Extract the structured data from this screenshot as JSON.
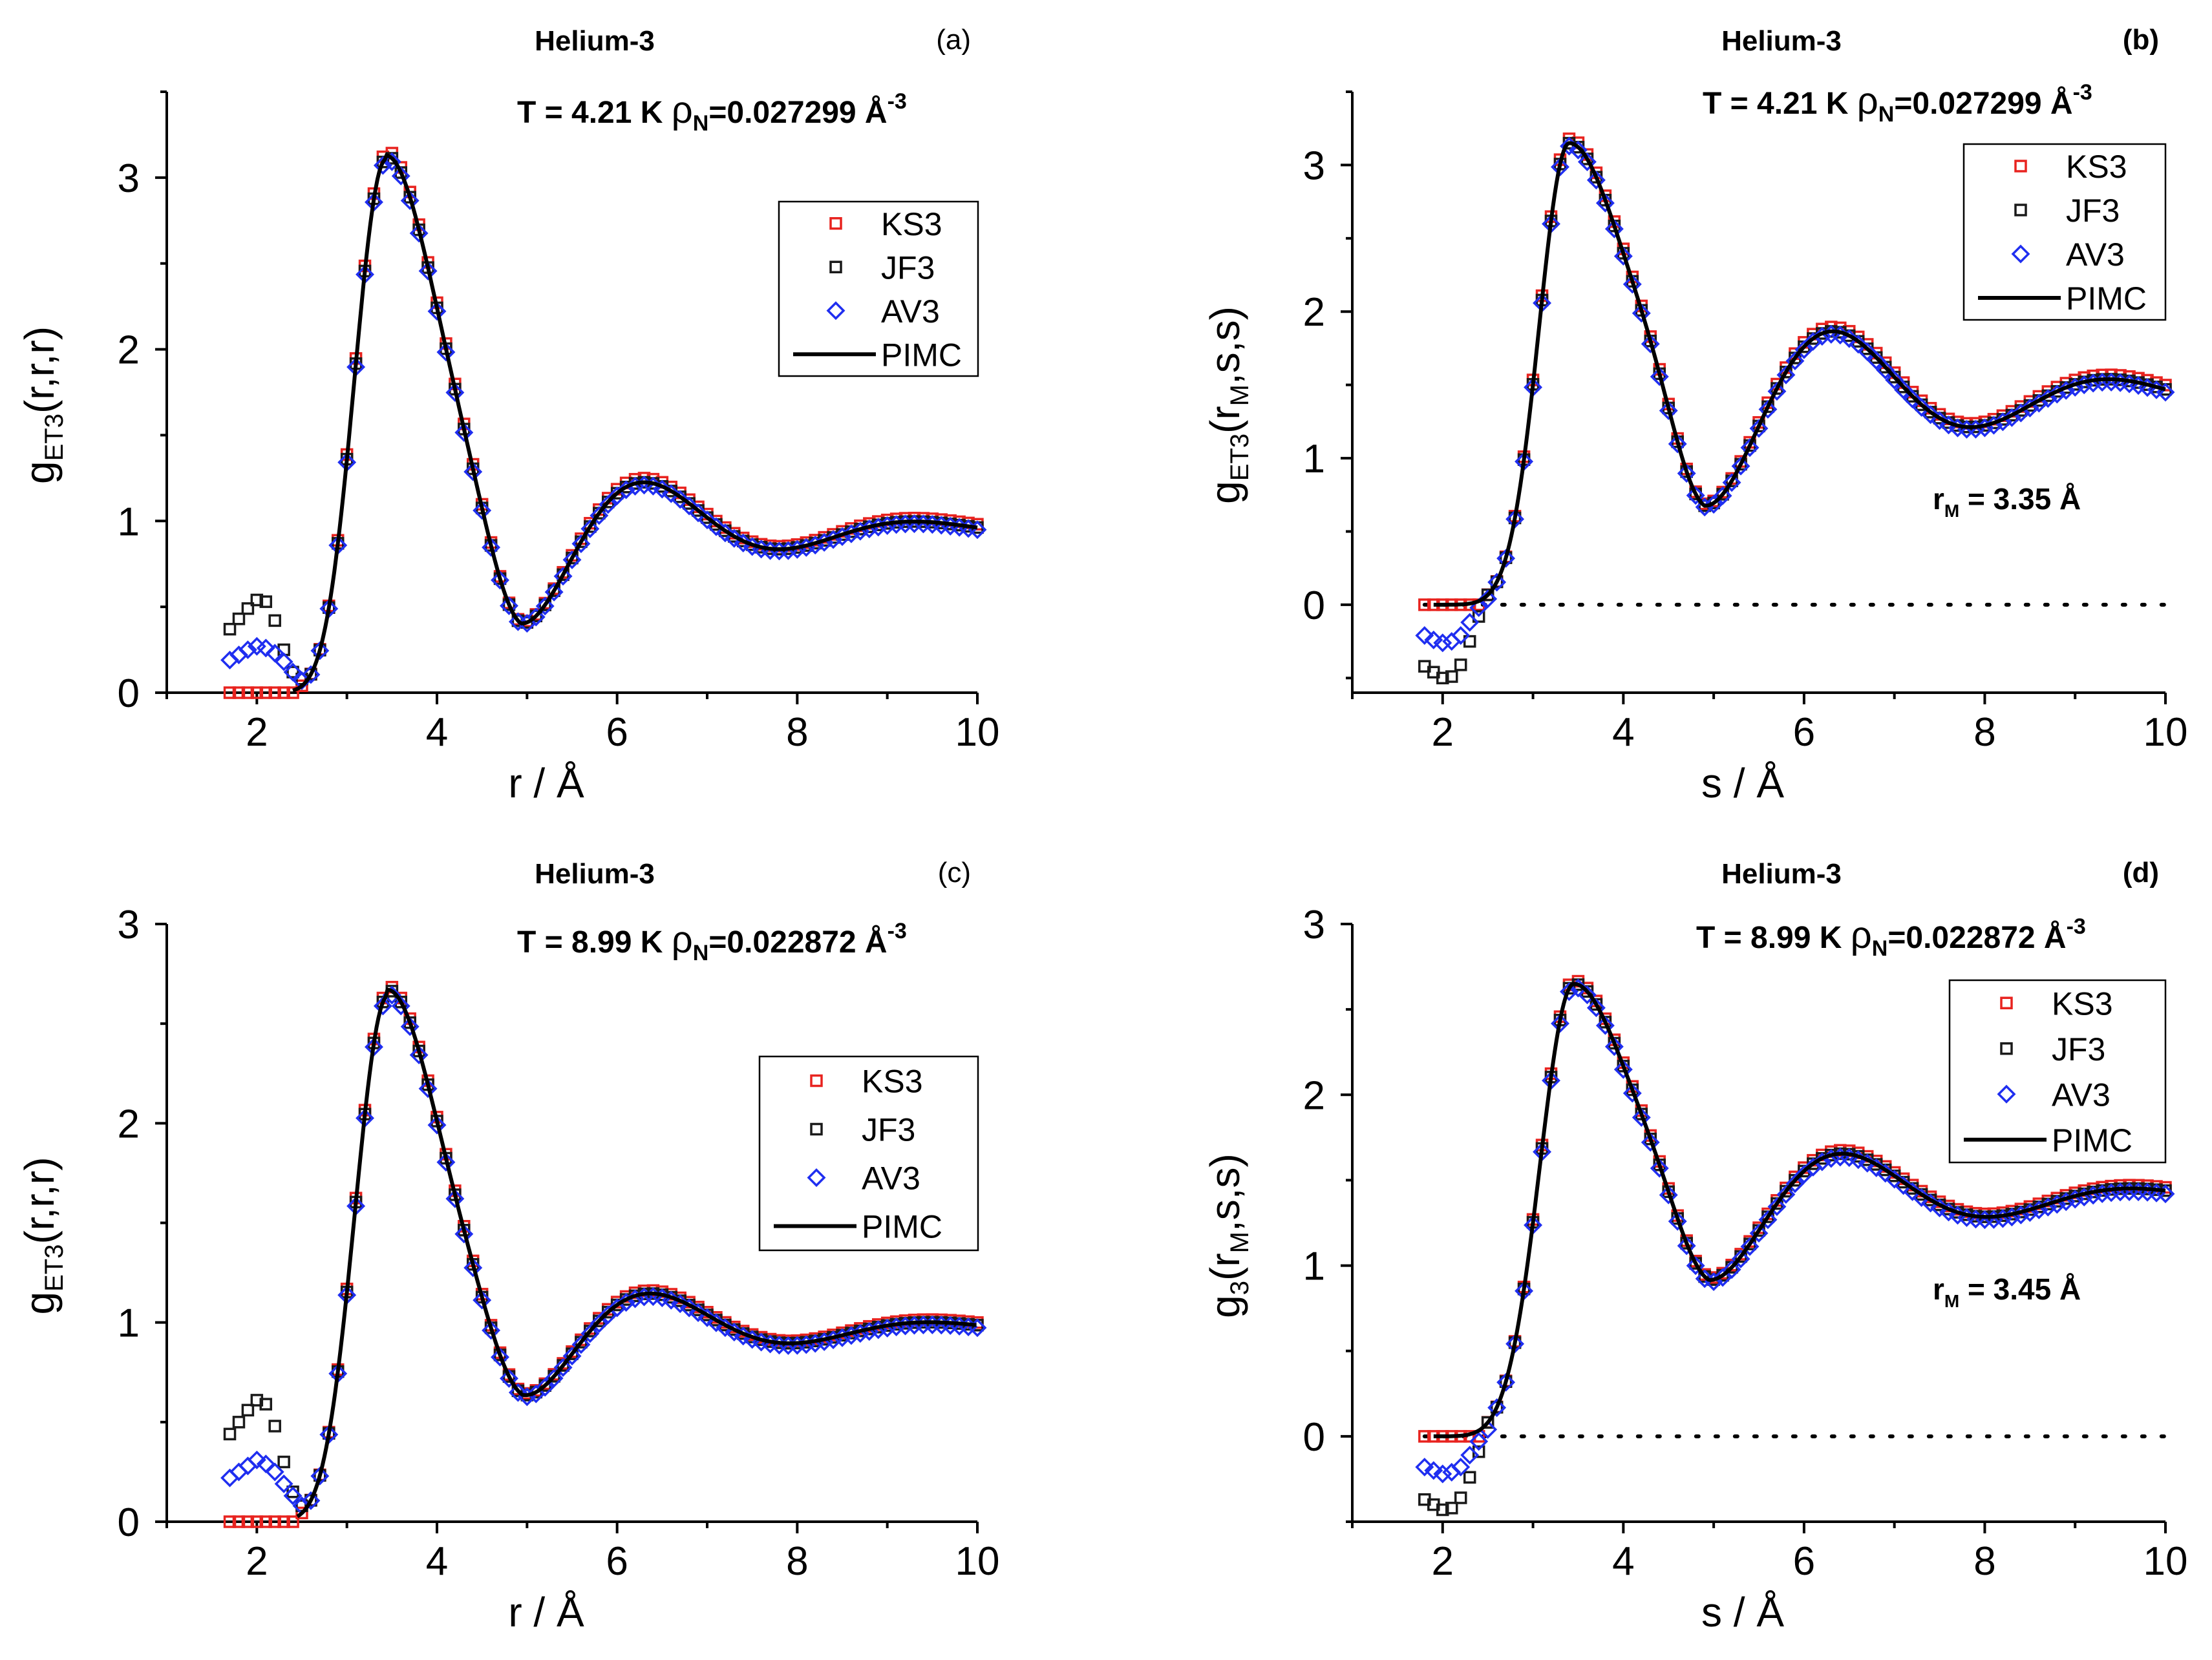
{
  "figure": {
    "panels": [
      {
        "title": "Helium-3",
        "label": "(a)",
        "condition_T": "T = 4.21 K",
        "condition_rho_prefix": "ρ",
        "condition_rho_sub": "N",
        "condition_rho_value": "=0.027299 Å",
        "condition_rho_exp": "-3",
        "ylabel_main": "g",
        "ylabel_sub": "ET3",
        "ylabel_rest": "(r,r,r)",
        "xlabel": "r / Å",
        "rm_label": "",
        "legend": [
          "KS3",
          "JF3",
          "AV3",
          "PIMC"
        ]
      },
      {
        "title": "Helium-3",
        "label": "(b)",
        "condition_T": "T = 4.21 K",
        "condition_rho_prefix": "ρ",
        "condition_rho_sub": "N",
        "condition_rho_value": "=0.027299 Å",
        "condition_rho_exp": "-3",
        "ylabel_main": "g",
        "ylabel_sub": "ET3",
        "ylabel_mid": "(r",
        "ylabel_sub2": "M",
        "ylabel_rest": ",s,s)",
        "xlabel": "s / Å",
        "rm_label": "r",
        "rm_sub": "M",
        "rm_value": " = 3.35 Å",
        "legend": [
          "KS3",
          "JF3",
          "AV3",
          "PIMC"
        ]
      },
      {
        "title": "Helium-3",
        "label": "(c)",
        "condition_T": "T = 8.99 K",
        "condition_rho_prefix": "ρ",
        "condition_rho_sub": "N",
        "condition_rho_value": "=0.022872 Å",
        "condition_rho_exp": "-3",
        "ylabel_main": "g",
        "ylabel_sub": "ET3",
        "ylabel_rest": "(r,r,r)",
        "xlabel": "r / Å",
        "rm_label": "",
        "legend": [
          "KS3",
          "JF3",
          "AV3",
          "PIMC"
        ]
      },
      {
        "title": "Helium-3",
        "label": "(d)",
        "condition_T": "T = 8.99 K",
        "condition_rho_prefix": "ρ",
        "condition_rho_sub": "N",
        "condition_rho_value": "=0.022872 Å",
        "condition_rho_exp": "-3",
        "ylabel_main": "g",
        "ylabel_sub": "3",
        "ylabel_mid": "(r",
        "ylabel_sub2": "M",
        "ylabel_rest": ",s,s)",
        "xlabel": "s / Å",
        "rm_label": "r",
        "rm_sub": "M",
        "rm_value": " = 3.45 Å",
        "legend": [
          "KS3",
          "JF3",
          "AV3",
          "PIMC"
        ]
      }
    ]
  },
  "colors": {
    "KS3": "#e8231f",
    "JF3": "#1a1a1a",
    "AV3": "#1f2ef0",
    "PIMC": "#000000"
  },
  "chart_data": [
    {
      "type": "scatter",
      "panel": "a",
      "xlim": [
        1,
        10
      ],
      "ylim": [
        0,
        3.5
      ],
      "xticks": [
        2,
        4,
        6,
        8,
        10
      ],
      "yticks": [
        0,
        1,
        2,
        3
      ],
      "xrange": [
        1.7,
        10
      ],
      "step": 0.1,
      "curve": {
        "h": 3.13,
        "peak": 3.43,
        "sigL": 0.35,
        "A1": 0.64,
        "A2": 0.32,
        "T": 3.0,
        "tau1": 1.7,
        "tau2": 2.4,
        "c": 0.95,
        "r0": 2.55,
        "w0": 0.18
      },
      "series": [
        {
          "name": "KS3",
          "marker": "square",
          "dy": 0.03,
          "lowRegion": "zero"
        },
        {
          "name": "JF3",
          "marker": "square",
          "dy": 0.0,
          "lowRegion": [
            [
              1.7,
              0.37
            ],
            [
              1.8,
              0.43
            ],
            [
              1.9,
              0.49
            ],
            [
              2.0,
              0.54
            ],
            [
              2.1,
              0.53
            ],
            [
              2.2,
              0.42
            ],
            [
              2.3,
              0.25
            ],
            [
              2.4,
              0.12
            ],
            [
              2.5,
              0.08
            ]
          ]
        },
        {
          "name": "AV3",
          "marker": "diamond",
          "dy": -0.02,
          "lowRegion": [
            [
              1.7,
              0.19
            ],
            [
              1.8,
              0.22
            ],
            [
              1.9,
              0.25
            ],
            [
              2.0,
              0.27
            ],
            [
              2.1,
              0.26
            ],
            [
              2.2,
              0.23
            ],
            [
              2.3,
              0.18
            ],
            [
              2.4,
              0.12
            ],
            [
              2.5,
              0.07
            ]
          ]
        },
        {
          "name": "PIMC",
          "marker": "line",
          "from": 2.4
        }
      ]
    },
    {
      "type": "scatter",
      "panel": "b",
      "xlim": [
        1,
        10
      ],
      "ylim": [
        -0.6,
        3.5
      ],
      "xticks": [
        2,
        4,
        6,
        8,
        10
      ],
      "yticks": [
        0,
        1,
        2,
        3
      ],
      "xrange": [
        1.8,
        10
      ],
      "step": 0.1,
      "hline": 0,
      "curve": {
        "h": 3.15,
        "peak": 3.4,
        "sigL": 0.33,
        "A1": 0.85,
        "A2": 0.28,
        "T": 3.05,
        "tau1": 2.2,
        "tau2": 2.6,
        "c": 1.43,
        "r0": 2.2,
        "w0": 0.15
      },
      "series": [
        {
          "name": "KS3",
          "marker": "square",
          "dy": 0.03,
          "lowRegion": "zero"
        },
        {
          "name": "JF3",
          "marker": "square",
          "dy": 0.0,
          "lowRegion": [
            [
              1.8,
              -0.42
            ],
            [
              1.9,
              -0.46
            ],
            [
              2.0,
              -0.5
            ],
            [
              2.1,
              -0.49
            ],
            [
              2.2,
              -0.41
            ],
            [
              2.3,
              -0.25
            ],
            [
              2.4,
              -0.08
            ]
          ]
        },
        {
          "name": "AV3",
          "marker": "diamond",
          "dy": -0.02,
          "lowRegion": [
            [
              1.8,
              -0.21
            ],
            [
              1.9,
              -0.24
            ],
            [
              2.0,
              -0.26
            ],
            [
              2.1,
              -0.25
            ],
            [
              2.2,
              -0.21
            ],
            [
              2.3,
              -0.12
            ],
            [
              2.4,
              -0.02
            ],
            [
              2.5,
              0.04
            ]
          ]
        },
        {
          "name": "PIMC",
          "marker": "line",
          "from": 1.9
        }
      ]
    },
    {
      "type": "scatter",
      "panel": "c",
      "xlim": [
        1,
        10
      ],
      "ylim": [
        0,
        3
      ],
      "xticks": [
        2,
        4,
        6,
        8,
        10
      ],
      "yticks": [
        0,
        1,
        2,
        3
      ],
      "xrange": [
        1.7,
        10
      ],
      "step": 0.1,
      "curve": {
        "h": 2.67,
        "peak": 3.45,
        "sigL": 0.37,
        "A1": 0.4,
        "A2": 0.17,
        "T": 3.1,
        "tau1": 1.8,
        "tau2": 2.5,
        "c": 0.97,
        "r0": 2.55,
        "w0": 0.2
      },
      "series": [
        {
          "name": "KS3",
          "marker": "square",
          "dy": 0.02,
          "lowRegion": "zero"
        },
        {
          "name": "JF3",
          "marker": "square",
          "dy": 0.0,
          "lowRegion": [
            [
              1.7,
              0.44
            ],
            [
              1.8,
              0.5
            ],
            [
              1.9,
              0.56
            ],
            [
              2.0,
              0.61
            ],
            [
              2.1,
              0.59
            ],
            [
              2.2,
              0.48
            ],
            [
              2.3,
              0.3
            ],
            [
              2.4,
              0.15
            ],
            [
              2.5,
              0.08
            ]
          ]
        },
        {
          "name": "AV3",
          "marker": "diamond",
          "dy": -0.02,
          "lowRegion": [
            [
              1.7,
              0.22
            ],
            [
              1.8,
              0.25
            ],
            [
              1.9,
              0.28
            ],
            [
              2.0,
              0.31
            ],
            [
              2.1,
              0.29
            ],
            [
              2.2,
              0.25
            ],
            [
              2.3,
              0.19
            ],
            [
              2.4,
              0.13
            ],
            [
              2.5,
              0.08
            ]
          ]
        },
        {
          "name": "PIMC",
          "marker": "line",
          "from": 2.45
        }
      ]
    },
    {
      "type": "scatter",
      "panel": "d",
      "xlim": [
        1,
        10
      ],
      "ylim": [
        -0.5,
        3
      ],
      "xticks": [
        2,
        4,
        6,
        8,
        10
      ],
      "yticks": [
        0,
        1,
        2,
        3
      ],
      "xrange": [
        1.8,
        10
      ],
      "step": 0.1,
      "hline": 0,
      "curve": {
        "h": 2.65,
        "peak": 3.45,
        "sigL": 0.37,
        "A1": 0.55,
        "A2": 0.11,
        "T": 3.2,
        "tau1": 2.0,
        "tau2": 2.8,
        "c": 1.4,
        "r0": 2.25,
        "w0": 0.16
      },
      "series": [
        {
          "name": "KS3",
          "marker": "square",
          "dy": 0.02,
          "lowRegion": "zero"
        },
        {
          "name": "JF3",
          "marker": "square",
          "dy": 0.0,
          "lowRegion": [
            [
              1.8,
              -0.37
            ],
            [
              1.9,
              -0.4
            ],
            [
              2.0,
              -0.43
            ],
            [
              2.1,
              -0.42
            ],
            [
              2.2,
              -0.36
            ],
            [
              2.3,
              -0.24
            ],
            [
              2.4,
              -0.09
            ]
          ]
        },
        {
          "name": "AV3",
          "marker": "diamond",
          "dy": -0.02,
          "lowRegion": [
            [
              1.8,
              -0.18
            ],
            [
              1.9,
              -0.2
            ],
            [
              2.0,
              -0.22
            ],
            [
              2.1,
              -0.21
            ],
            [
              2.2,
              -0.18
            ],
            [
              2.3,
              -0.11
            ],
            [
              2.4,
              -0.03
            ],
            [
              2.5,
              0.04
            ]
          ]
        },
        {
          "name": "PIMC",
          "marker": "line",
          "from": 1.9
        }
      ]
    }
  ]
}
